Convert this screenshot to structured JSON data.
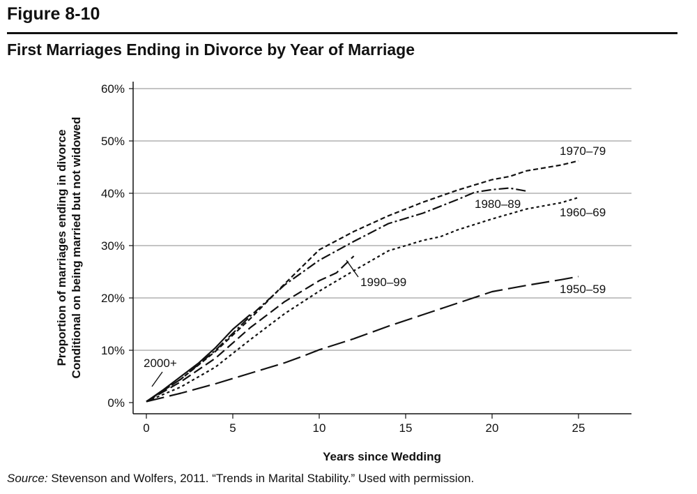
{
  "figure": {
    "number": "Figure 8-10",
    "title": "First Marriages Ending in Divorce by Year of Marriage",
    "source_label": "Source:",
    "source_text": " Stevenson and Wolfers, 2011. “Trends in Marital Stability.” Used with permission."
  },
  "chart_data": {
    "type": "line",
    "title": "First Marriages Ending in Divorce by Year of Marriage",
    "xlabel": "Years since Wedding",
    "ylabel": [
      "Proportion of marriages ending in divorce",
      "Conditional on being married but not widowed"
    ],
    "xlim": [
      0,
      28
    ],
    "ylim": [
      0,
      60
    ],
    "x_ticks": [
      0,
      5,
      10,
      15,
      20,
      25
    ],
    "y_ticks": [
      0,
      10,
      20,
      30,
      40,
      50,
      60
    ],
    "y_tick_suffix": "%",
    "grid": "horizontal",
    "series": [
      {
        "name": "1950–59",
        "dash": "26,8",
        "x": [
          0,
          2,
          4,
          6,
          8,
          9,
          10,
          12,
          14,
          16,
          18,
          20,
          22,
          24,
          25
        ],
        "y": [
          0.2,
          1.8,
          3.6,
          5.6,
          7.6,
          8.8,
          10.1,
          12.2,
          14.6,
          16.8,
          19,
          21.2,
          22.4,
          23.5,
          24.1
        ]
      },
      {
        "name": "1960–69",
        "dash": "4,4",
        "x": [
          0,
          2,
          4,
          6,
          8,
          10,
          12,
          14,
          15,
          16,
          17,
          18,
          20,
          22,
          24,
          25
        ],
        "y": [
          0.2,
          3,
          6.8,
          12,
          17,
          21.3,
          25.2,
          29,
          30,
          31,
          31.7,
          33,
          35.1,
          37,
          38.2,
          39.2
        ]
      },
      {
        "name": "1970–79",
        "dash": "7,4",
        "x": [
          0,
          2,
          4,
          6,
          8,
          10,
          12,
          14,
          16,
          18,
          20,
          21,
          22,
          24,
          25
        ],
        "y": [
          0.2,
          4.5,
          9.8,
          16,
          22.7,
          29.2,
          32.7,
          35.7,
          38.3,
          40.6,
          42.6,
          43.2,
          44.3,
          45.4,
          46.2
        ]
      },
      {
        "name": "1980–89",
        "dash": "14,4,3,4",
        "x": [
          0,
          2,
          4,
          6,
          8,
          10,
          12,
          14,
          16,
          18,
          19,
          20,
          21,
          22
        ],
        "y": [
          0.2,
          4.5,
          10,
          16.5,
          22.5,
          27.2,
          30.8,
          34.2,
          36.2,
          38.8,
          40.2,
          40.7,
          41,
          40.4
        ]
      },
      {
        "name": "1990–99",
        "dash": "14,6",
        "x": [
          0,
          2,
          4,
          6,
          8,
          10,
          11,
          12
        ],
        "y": [
          0.2,
          4,
          8.5,
          14.3,
          19.3,
          23.3,
          24.8,
          28
        ]
      },
      {
        "name": "2000+",
        "dash": "",
        "x": [
          0,
          1,
          2,
          3,
          4,
          5,
          6
        ],
        "y": [
          0.2,
          2.5,
          5,
          7.5,
          10.5,
          14,
          16.8
        ]
      }
    ],
    "annotations": [
      {
        "text": "1970–79",
        "series": "1970–79"
      },
      {
        "text": "1980–89",
        "series": "1980–89"
      },
      {
        "text": "1960–69",
        "series": "1960–69"
      },
      {
        "text": "1990–99",
        "series": "1990–99"
      },
      {
        "text": "1950–59",
        "series": "1950–59"
      },
      {
        "text": "2000+",
        "series": "2000+"
      }
    ]
  }
}
